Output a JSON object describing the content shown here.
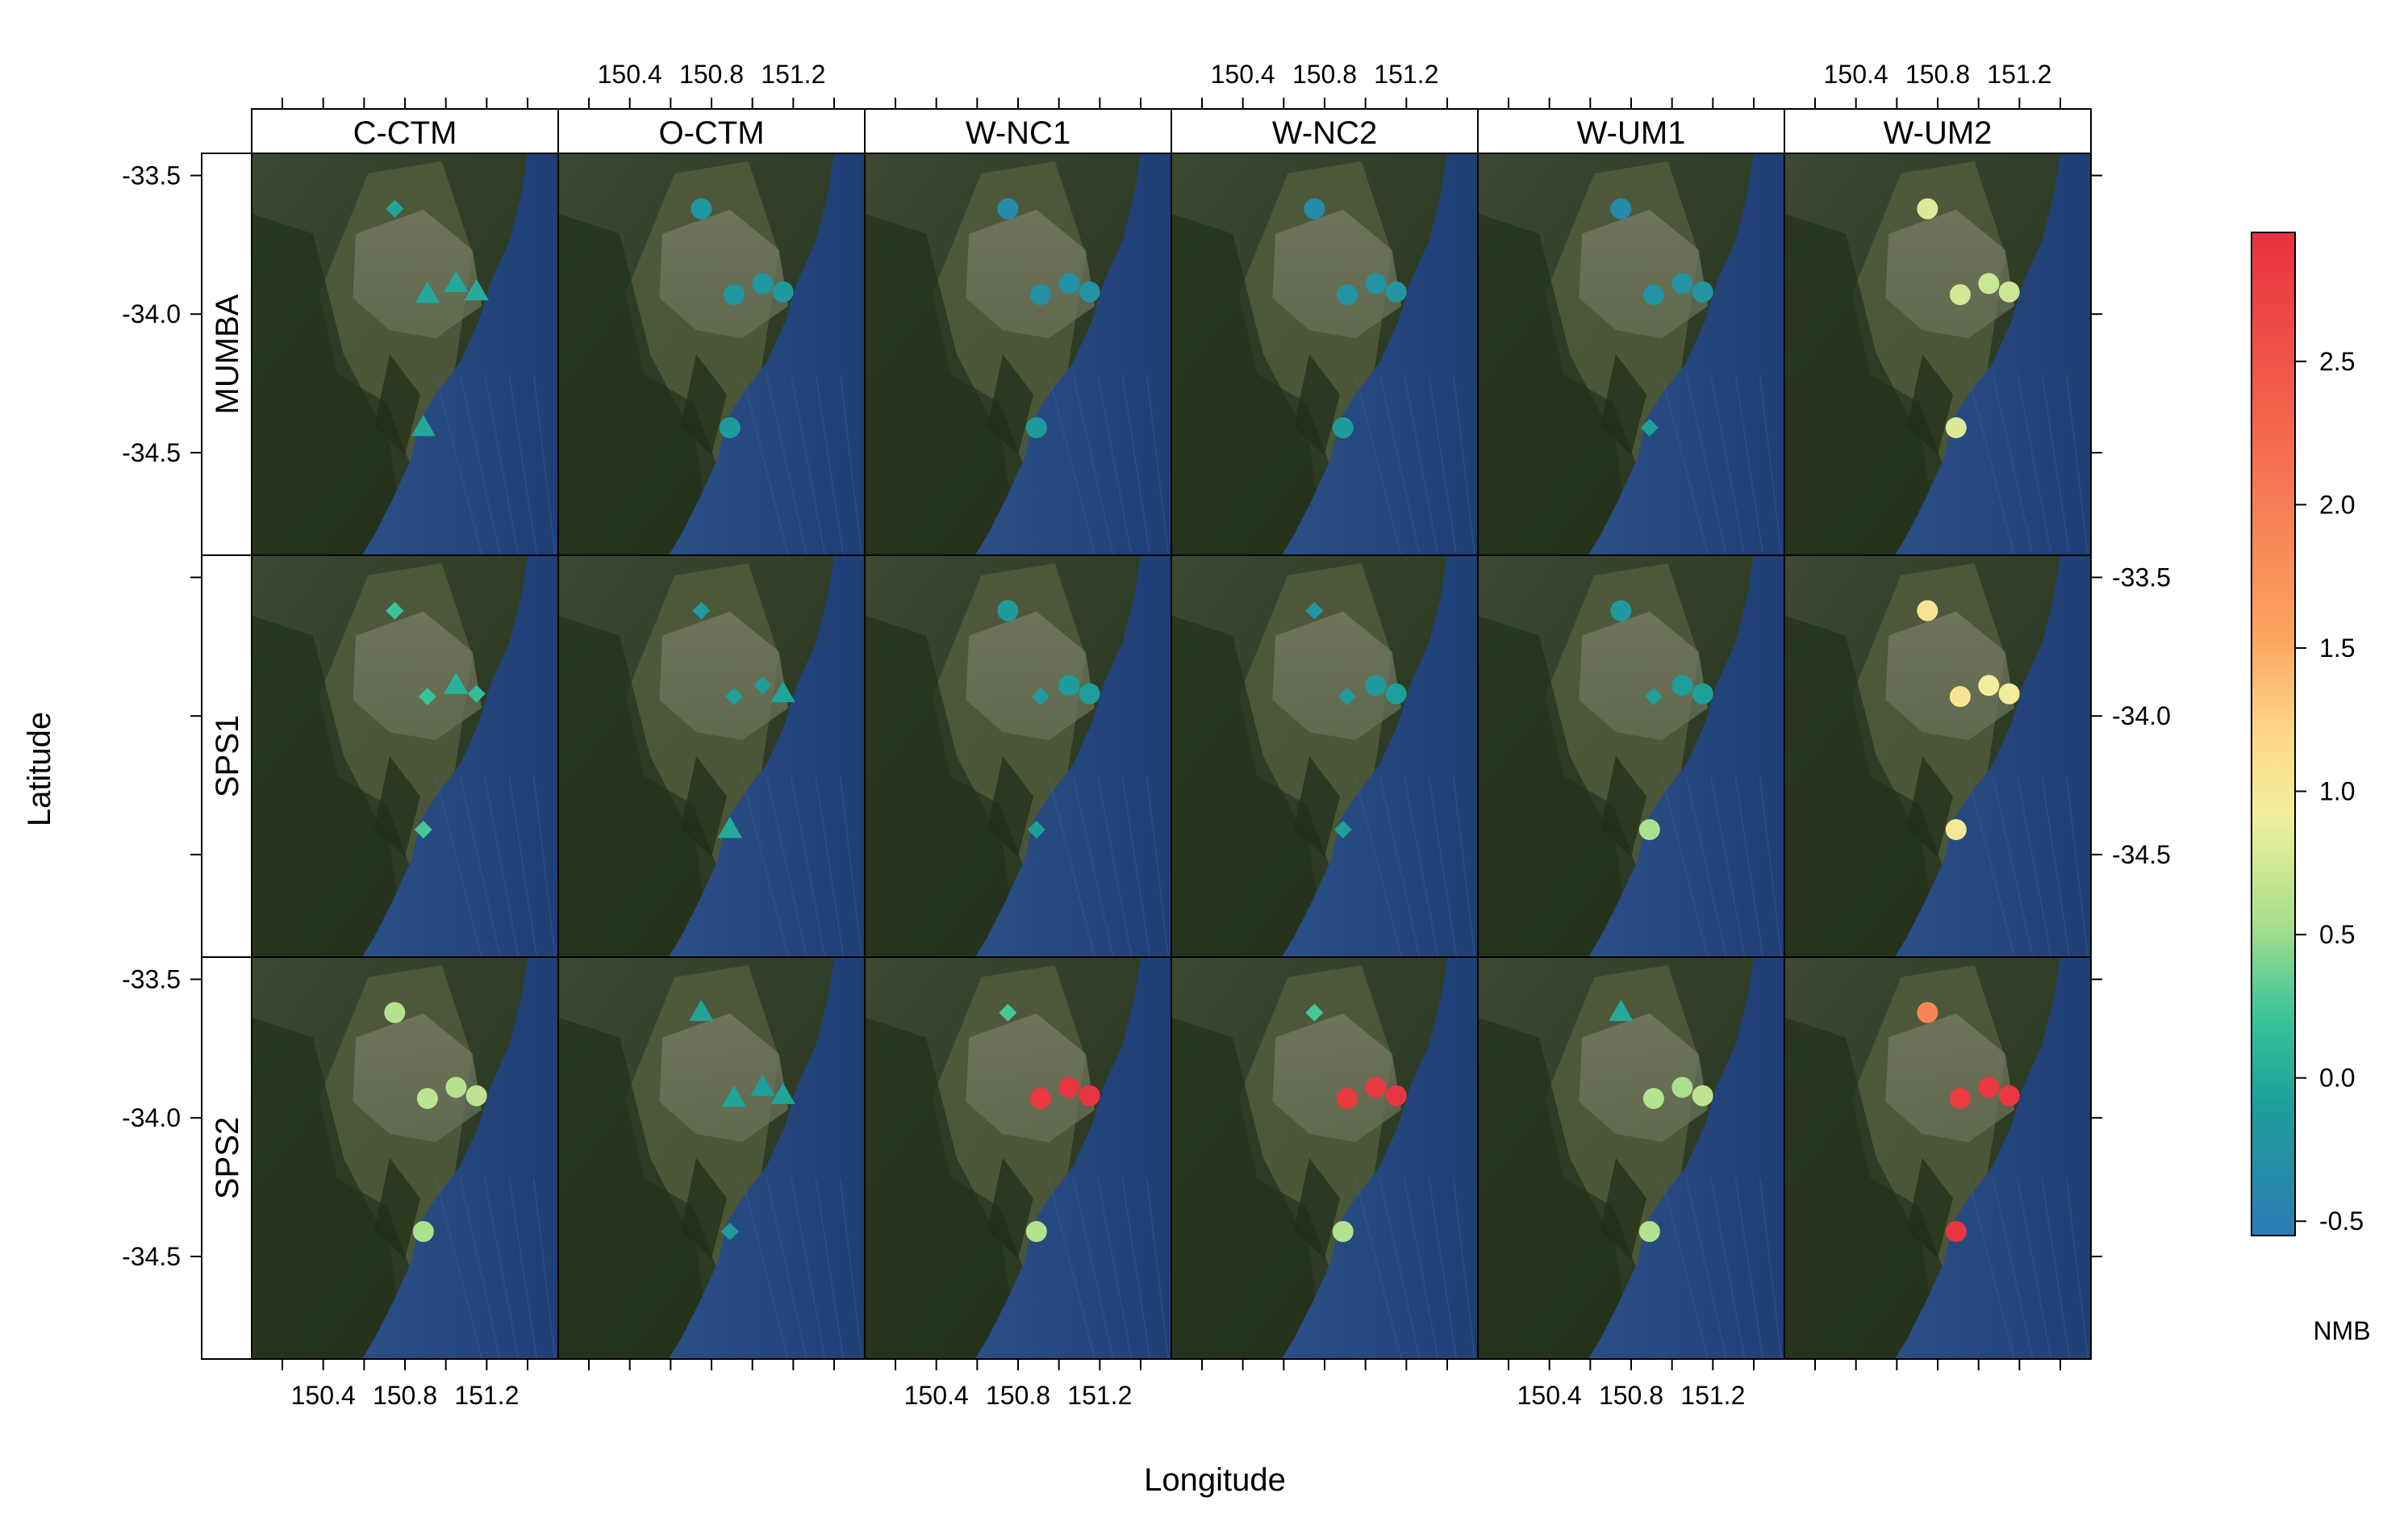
{
  "chart_data": {
    "type": "scatter",
    "title": "",
    "xlabel": "Longitude",
    "ylabel": "Latitude",
    "xlim": [
      150.05,
      151.55
    ],
    "ylim": [
      -34.87,
      -33.42
    ],
    "x_ticks": [
      150.4,
      150.8,
      151.2
    ],
    "x_tick_labels": [
      "150.4",
      "150.8",
      "151.2"
    ],
    "y_ticks": [
      -33.5,
      -34.0,
      -34.5
    ],
    "y_tick_labels": [
      "-33.5",
      "-34.0",
      "-34.5"
    ],
    "columns": [
      "C-CTM",
      "O-CTM",
      "W-NC1",
      "W-NC2",
      "W-UM1",
      "W-UM2"
    ],
    "rows": [
      "MUMBA",
      "SPS1",
      "SPS2"
    ],
    "colorbar": {
      "label": "NMB",
      "min": -0.55,
      "max": 2.95,
      "ticks": [
        -0.5,
        0.0,
        0.5,
        1.0,
        1.5,
        2.0,
        2.5
      ],
      "tick_labels": [
        "-0.5",
        "0.0",
        "0.5",
        "1.0",
        "1.5",
        "2.0",
        "2.5"
      ],
      "colors": [
        "#2c7bb6",
        "#1d9f9a",
        "#3cc49a",
        "#a8df8c",
        "#f2ef9c",
        "#fed78a",
        "#fca35e",
        "#f4684e",
        "#e8313e"
      ],
      "color_stops": [
        0.0,
        0.13,
        0.22,
        0.31,
        0.42,
        0.5,
        0.6,
        0.8,
        1.0
      ]
    },
    "sites": [
      {
        "lon": 150.75,
        "lat": -33.62
      },
      {
        "lon": 150.91,
        "lat": -33.93
      },
      {
        "lon": 151.05,
        "lat": -33.89
      },
      {
        "lon": 151.15,
        "lat": -33.92
      },
      {
        "lon": 150.89,
        "lat": -34.41
      }
    ],
    "panels": [
      {
        "row": "MUMBA",
        "col": "C-CTM",
        "points": [
          {
            "shape": "diamond",
            "nmb": -0.05
          },
          {
            "shape": "triangle",
            "nmb": -0.02
          },
          {
            "shape": "triangle",
            "nmb": -0.02
          },
          {
            "shape": "triangle",
            "nmb": 0.0
          },
          {
            "shape": "triangle",
            "nmb": -0.02
          }
        ]
      },
      {
        "row": "MUMBA",
        "col": "O-CTM",
        "points": [
          {
            "shape": "circle",
            "nmb": -0.2
          },
          {
            "shape": "circle",
            "nmb": -0.2
          },
          {
            "shape": "circle",
            "nmb": -0.2
          },
          {
            "shape": "circle",
            "nmb": -0.18
          },
          {
            "shape": "circle",
            "nmb": -0.15
          }
        ]
      },
      {
        "row": "MUMBA",
        "col": "W-NC1",
        "points": [
          {
            "shape": "circle",
            "nmb": -0.35
          },
          {
            "shape": "circle",
            "nmb": -0.28
          },
          {
            "shape": "circle",
            "nmb": -0.28
          },
          {
            "shape": "circle",
            "nmb": -0.25
          },
          {
            "shape": "circle",
            "nmb": -0.15
          }
        ]
      },
      {
        "row": "MUMBA",
        "col": "W-NC2",
        "points": [
          {
            "shape": "circle",
            "nmb": -0.35
          },
          {
            "shape": "circle",
            "nmb": -0.25
          },
          {
            "shape": "circle",
            "nmb": -0.25
          },
          {
            "shape": "circle",
            "nmb": -0.22
          },
          {
            "shape": "circle",
            "nmb": -0.15
          }
        ]
      },
      {
        "row": "MUMBA",
        "col": "W-UM1",
        "points": [
          {
            "shape": "circle",
            "nmb": -0.35
          },
          {
            "shape": "circle",
            "nmb": -0.25
          },
          {
            "shape": "circle",
            "nmb": -0.25
          },
          {
            "shape": "circle",
            "nmb": -0.22
          },
          {
            "shape": "diamond",
            "nmb": -0.1
          }
        ]
      },
      {
        "row": "MUMBA",
        "col": "W-UM2",
        "points": [
          {
            "shape": "circle",
            "nmb": 0.8
          },
          {
            "shape": "circle",
            "nmb": 0.75
          },
          {
            "shape": "circle",
            "nmb": 0.7
          },
          {
            "shape": "circle",
            "nmb": 0.72
          },
          {
            "shape": "circle",
            "nmb": 0.8
          }
        ]
      },
      {
        "row": "SPS1",
        "col": "C-CTM",
        "points": [
          {
            "shape": "diamond",
            "nmb": 0.2
          },
          {
            "shape": "diamond",
            "nmb": 0.2
          },
          {
            "shape": "triangle",
            "nmb": 0.05
          },
          {
            "shape": "diamond",
            "nmb": 0.15
          },
          {
            "shape": "diamond",
            "nmb": 0.25
          }
        ]
      },
      {
        "row": "SPS1",
        "col": "O-CTM",
        "points": [
          {
            "shape": "diamond",
            "nmb": -0.15
          },
          {
            "shape": "diamond",
            "nmb": -0.1
          },
          {
            "shape": "diamond",
            "nmb": -0.1
          },
          {
            "shape": "triangle",
            "nmb": -0.05
          },
          {
            "shape": "triangle",
            "nmb": 0.0
          }
        ]
      },
      {
        "row": "SPS1",
        "col": "W-NC1",
        "points": [
          {
            "shape": "circle",
            "nmb": -0.15
          },
          {
            "shape": "diamond",
            "nmb": -0.15
          },
          {
            "shape": "circle",
            "nmb": -0.15
          },
          {
            "shape": "circle",
            "nmb": -0.12
          },
          {
            "shape": "diamond",
            "nmb": -0.1
          }
        ]
      },
      {
        "row": "SPS1",
        "col": "W-NC2",
        "points": [
          {
            "shape": "diamond",
            "nmb": -0.2
          },
          {
            "shape": "diamond",
            "nmb": -0.15
          },
          {
            "shape": "circle",
            "nmb": -0.15
          },
          {
            "shape": "circle",
            "nmb": -0.12
          },
          {
            "shape": "diamond",
            "nmb": -0.1
          }
        ]
      },
      {
        "row": "SPS1",
        "col": "W-UM1",
        "points": [
          {
            "shape": "circle",
            "nmb": -0.15
          },
          {
            "shape": "diamond",
            "nmb": -0.1
          },
          {
            "shape": "circle",
            "nmb": -0.12
          },
          {
            "shape": "circle",
            "nmb": -0.1
          },
          {
            "shape": "circle",
            "nmb": 0.55
          }
        ]
      },
      {
        "row": "SPS1",
        "col": "W-UM2",
        "points": [
          {
            "shape": "circle",
            "nmb": 1.05
          },
          {
            "shape": "circle",
            "nmb": 1.05
          },
          {
            "shape": "circle",
            "nmb": 0.95
          },
          {
            "shape": "circle",
            "nmb": 0.95
          },
          {
            "shape": "circle",
            "nmb": 1.0
          }
        ]
      },
      {
        "row": "SPS2",
        "col": "C-CTM",
        "points": [
          {
            "shape": "circle",
            "nmb": 0.6
          },
          {
            "shape": "circle",
            "nmb": 0.65
          },
          {
            "shape": "circle",
            "nmb": 0.6
          },
          {
            "shape": "circle",
            "nmb": 0.65
          },
          {
            "shape": "circle",
            "nmb": 0.55
          }
        ]
      },
      {
        "row": "SPS2",
        "col": "O-CTM",
        "points": [
          {
            "shape": "triangle",
            "nmb": -0.05
          },
          {
            "shape": "triangle",
            "nmb": -0.05
          },
          {
            "shape": "triangle",
            "nmb": -0.1
          },
          {
            "shape": "triangle",
            "nmb": -0.05
          },
          {
            "shape": "diamond",
            "nmb": -0.15
          }
        ]
      },
      {
        "row": "SPS2",
        "col": "W-NC1",
        "points": [
          {
            "shape": "diamond",
            "nmb": 0.25
          },
          {
            "shape": "circle",
            "nmb": 2.85
          },
          {
            "shape": "circle",
            "nmb": 2.9
          },
          {
            "shape": "circle",
            "nmb": 2.9
          },
          {
            "shape": "circle",
            "nmb": 0.6
          }
        ]
      },
      {
        "row": "SPS2",
        "col": "W-NC2",
        "points": [
          {
            "shape": "diamond",
            "nmb": 0.25
          },
          {
            "shape": "circle",
            "nmb": 2.85
          },
          {
            "shape": "circle",
            "nmb": 2.85
          },
          {
            "shape": "circle",
            "nmb": 2.9
          },
          {
            "shape": "circle",
            "nmb": 0.6
          }
        ]
      },
      {
        "row": "SPS2",
        "col": "W-UM1",
        "points": [
          {
            "shape": "triangle",
            "nmb": 0.0
          },
          {
            "shape": "circle",
            "nmb": 0.6
          },
          {
            "shape": "circle",
            "nmb": 0.55
          },
          {
            "shape": "circle",
            "nmb": 0.65
          },
          {
            "shape": "circle",
            "nmb": 0.6
          }
        ]
      },
      {
        "row": "SPS2",
        "col": "W-UM2",
        "points": [
          {
            "shape": "circle",
            "nmb": 1.9
          },
          {
            "shape": "circle",
            "nmb": 2.8
          },
          {
            "shape": "circle",
            "nmb": 2.85
          },
          {
            "shape": "circle",
            "nmb": 2.85
          },
          {
            "shape": "circle",
            "nmb": 2.9
          }
        ]
      }
    ]
  }
}
